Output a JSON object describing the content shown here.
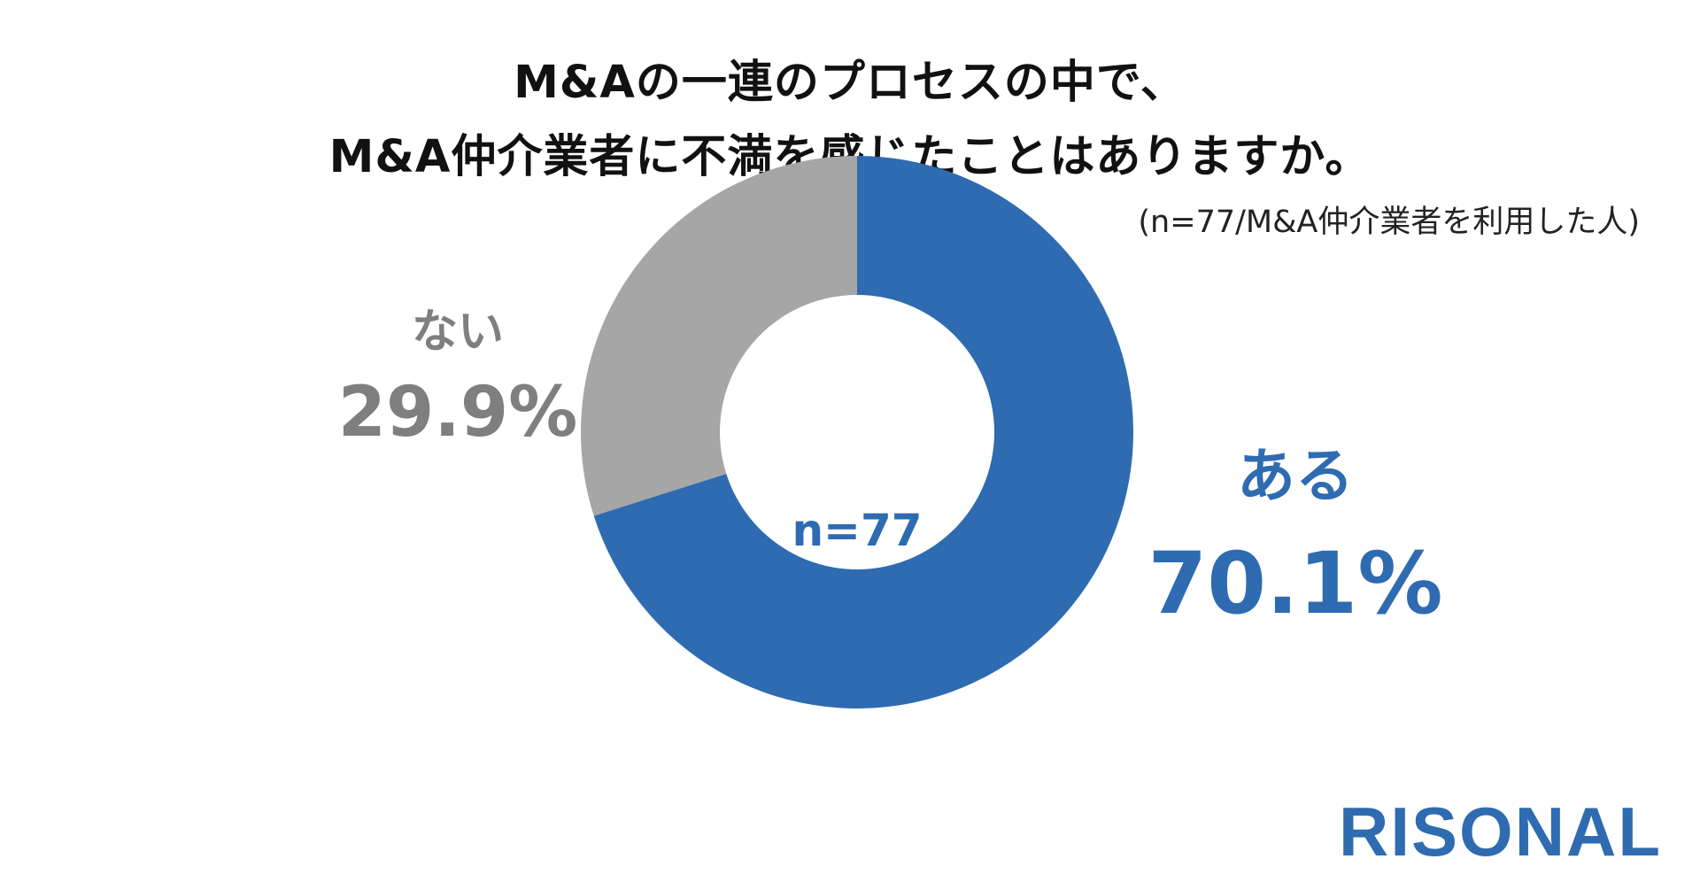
{
  "title_lines": [
    "M&Aの一連のプロセスの中で、",
    "M&A仲介業者に不満を感じたことはありますか。"
  ],
  "note": "(n=77/M&A仲介業者を利用した人)",
  "center_label": "n=77",
  "logo": "RISONAL",
  "colors": {
    "aru": "#2E6BB1",
    "nai": "#A6A6A6",
    "nai_text": "#7F7F7F",
    "center_text": "#2E6BB1",
    "logo": "#2E6BB1"
  },
  "chart_data": {
    "type": "pie",
    "variant": "donut",
    "title": "M&Aの一連のプロセスの中で、M&A仲介業者に不満を感じたことはありますか。",
    "categories": [
      "ある",
      "ない"
    ],
    "values": [
      70.1,
      29.9
    ],
    "value_labels": [
      "70.1%",
      "29.9%"
    ],
    "start_angle": "12 o'clock",
    "direction": "clockwise",
    "center_label": "n=77"
  }
}
